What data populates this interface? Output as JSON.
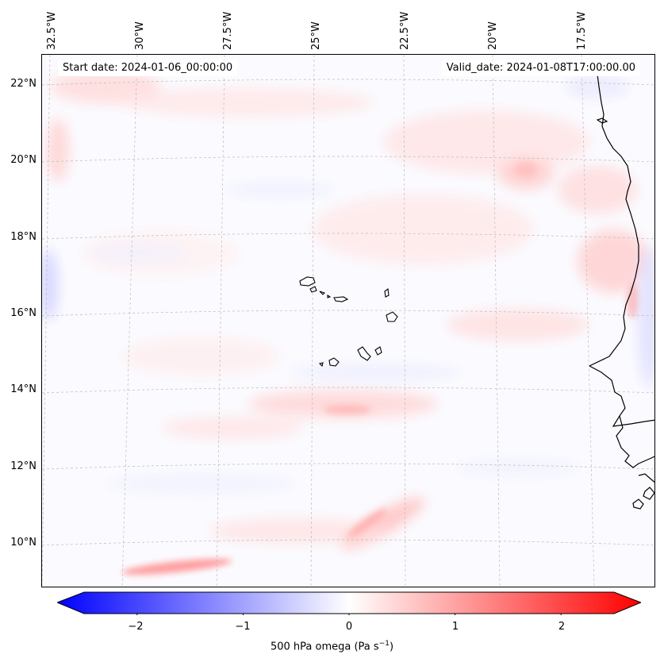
{
  "map": {
    "start_date": "Start date: 2024-01-06_00:00:00",
    "valid_date": "Valid_date: 2024-01-08T17:00:00.00",
    "lon_labels": [
      "32.5°W",
      "30°W",
      "27.5°W",
      "25°W",
      "22.5°W",
      "20°W",
      "17.5°W"
    ],
    "lat_labels": [
      "22°N",
      "20°N",
      "18°N",
      "16°N",
      "14°N",
      "12°N",
      "10°N"
    ],
    "extent": {
      "lon_min": -33,
      "lon_max": -15.5,
      "lat_min": 8.8,
      "lat_max": 22.8
    },
    "gridlines": true,
    "colors": {
      "coast": "#000000",
      "positive": "#ff0000",
      "negative": "#0000ff",
      "grid": "#bbbbbb"
    }
  },
  "colorbar": {
    "ticks": [
      "−2",
      "−1",
      "0",
      "1",
      "2"
    ],
    "tick_values": [
      -2,
      -1,
      0,
      1,
      2
    ],
    "range": [
      -2.5,
      2.5
    ],
    "label_main": "500 hPa omega (Pa s",
    "label_sup": "−1",
    "label_end": ")"
  }
}
